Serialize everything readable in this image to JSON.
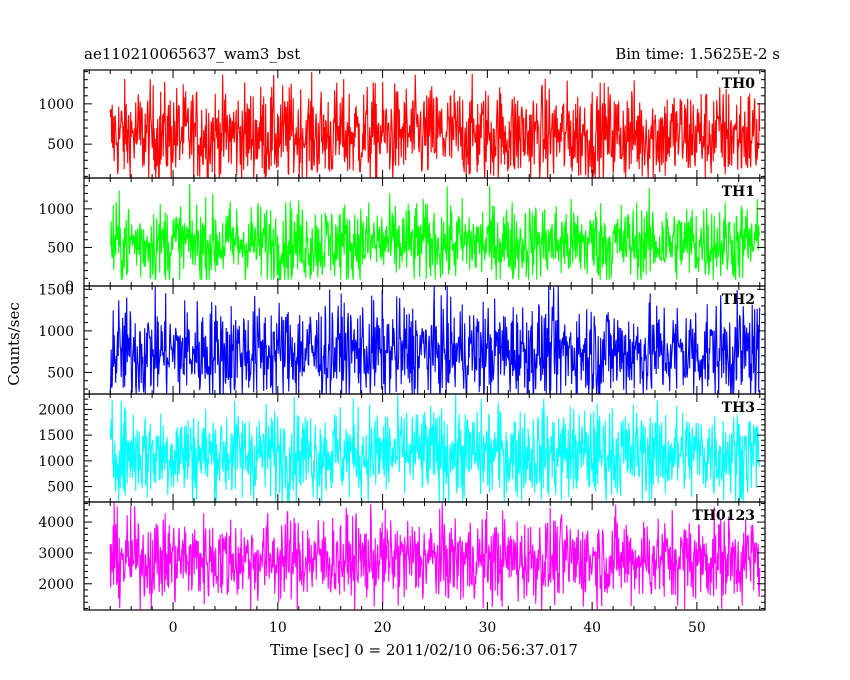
{
  "header": {
    "title": "ae110210065637_wam3_bst",
    "bin_time": "Bin time: 1.5625E-2 s"
  },
  "chart_data": {
    "type": "line",
    "x_range": [
      -8.5,
      56.5
    ],
    "xlabel": "Time [sec] 0 = 2011/02/10 06:56:37.017",
    "ylabel": "Counts/sec",
    "x_ticks": [
      0,
      10,
      20,
      30,
      40,
      50
    ],
    "data_x_range": [
      -6,
      56
    ],
    "panels": [
      {
        "label": "TH0",
        "color": "#ff0000",
        "ylim": [
          80,
          1420
        ],
        "ticks": [
          500,
          1000
        ],
        "mean": 620,
        "spread": 300,
        "min": 80,
        "max": 1420
      },
      {
        "label": "TH1",
        "color": "#00ff00",
        "ylim": [
          0,
          1400
        ],
        "ticks": [
          0,
          500,
          1000
        ],
        "mean": 560,
        "spread": 260,
        "min": 80,
        "max": 1400
      },
      {
        "label": "TH2",
        "color": "#0000ff",
        "ylim": [
          240,
          1540
        ],
        "ticks": [
          500,
          1000,
          1500
        ],
        "mean": 750,
        "spread": 300,
        "min": 240,
        "max": 1540
      },
      {
        "label": "TH3",
        "color": "#00ffff",
        "ylim": [
          200,
          2300
        ],
        "ticks": [
          500,
          1000,
          1500,
          2000
        ],
        "mean": 1150,
        "spread": 450,
        "min": 200,
        "max": 2300
      },
      {
        "label": "TH0123",
        "color": "#ff00ff",
        "ylim": [
          1150,
          4650
        ],
        "ticks": [
          2000,
          3000,
          4000
        ],
        "mean": 2800,
        "spread": 700,
        "min": 1150,
        "max": 4650
      }
    ]
  }
}
